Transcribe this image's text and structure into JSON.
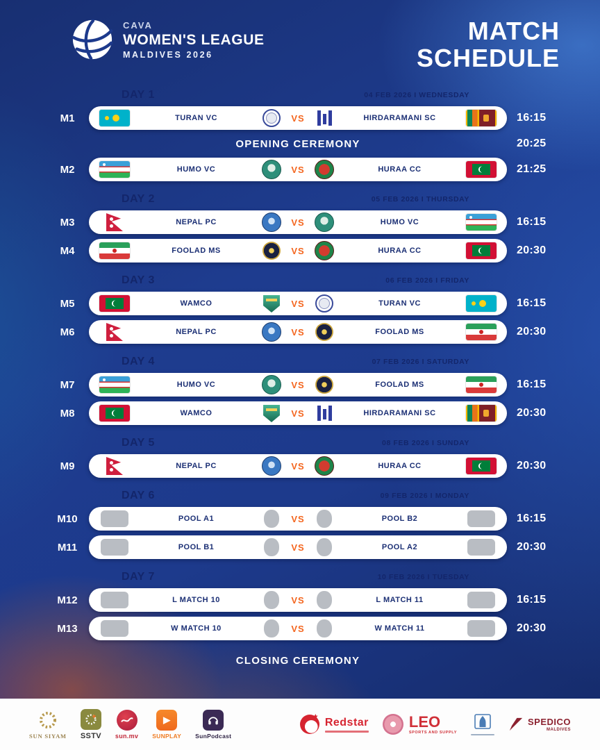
{
  "brand": {
    "cava": "CAVA",
    "league": "WOMEN'S LEAGUE",
    "edition": "MALDIVES 2026",
    "title_line1": "MATCH",
    "title_line2": "SCHEDULE"
  },
  "vs_label": "VS",
  "closing_ceremony": "CLOSING CEREMONY",
  "colors": {
    "background_blue": "#1d3a8c",
    "navy_text": "#13266b",
    "vs_orange": "#f4661f",
    "pill_white": "#ffffff",
    "placeholder_gray": "#b9bdc3"
  },
  "days": [
    {
      "label": "DAY 1",
      "date": "04 FEB 2026 I WEDNESDAY",
      "rows": [
        {
          "type": "match",
          "id": "M1",
          "time": "16:15",
          "home": {
            "name": "TURAN VC",
            "flag": "kz",
            "logo": "turan"
          },
          "away": {
            "name": "HIRDARAMANI SC",
            "flag": "lk",
            "logo": "hirdaramani"
          }
        },
        {
          "type": "ceremony",
          "label": "OPENING CEREMONY",
          "time": "20:25"
        },
        {
          "type": "match",
          "id": "M2",
          "time": "21:25",
          "home": {
            "name": "HUMO VC",
            "flag": "uz",
            "logo": "humo"
          },
          "away": {
            "name": "HURAA CC",
            "flag": "mv",
            "logo": "huraa"
          }
        }
      ]
    },
    {
      "label": "DAY 2",
      "date": "05 FEB 2026 I THURSDAY",
      "rows": [
        {
          "type": "match",
          "id": "M3",
          "time": "16:15",
          "home": {
            "name": "NEPAL PC",
            "flag": "np",
            "logo": "nepalpc"
          },
          "away": {
            "name": "HUMO VC",
            "flag": "uz",
            "logo": "humo"
          }
        },
        {
          "type": "match",
          "id": "M4",
          "time": "20:30",
          "home": {
            "name": "FOOLAD MS",
            "flag": "ir",
            "logo": "foolad"
          },
          "away": {
            "name": "HURAA CC",
            "flag": "mv",
            "logo": "huraa"
          }
        }
      ]
    },
    {
      "label": "DAY 3",
      "date": "06 FEB 2026 I FRIDAY",
      "rows": [
        {
          "type": "match",
          "id": "M5",
          "time": "16:15",
          "home": {
            "name": "WAMCO",
            "flag": "mv",
            "logo": "wamco"
          },
          "away": {
            "name": "TURAN VC",
            "flag": "kz",
            "logo": "turan"
          }
        },
        {
          "type": "match",
          "id": "M6",
          "time": "20:30",
          "home": {
            "name": "NEPAL PC",
            "flag": "np",
            "logo": "nepalpc"
          },
          "away": {
            "name": "FOOLAD MS",
            "flag": "ir",
            "logo": "foolad"
          }
        }
      ]
    },
    {
      "label": "DAY 4",
      "date": "07 FEB 2026 I SATURDAY",
      "rows": [
        {
          "type": "match",
          "id": "M7",
          "time": "16:15",
          "home": {
            "name": "HUMO VC",
            "flag": "uz",
            "logo": "humo"
          },
          "away": {
            "name": "FOOLAD MS",
            "flag": "ir",
            "logo": "foolad"
          }
        },
        {
          "type": "match",
          "id": "M8",
          "time": "20:30",
          "home": {
            "name": "WAMCO",
            "flag": "mv",
            "logo": "wamco"
          },
          "away": {
            "name": "HIRDARAMANI SC",
            "flag": "lk",
            "logo": "hirdaramani"
          }
        }
      ]
    },
    {
      "label": "DAY 5",
      "date": "08 FEB 2026 I SUNDAY",
      "rows": [
        {
          "type": "match",
          "id": "M9",
          "time": "20:30",
          "home": {
            "name": "NEPAL PC",
            "flag": "np",
            "logo": "nepalpc"
          },
          "away": {
            "name": "HURAA CC",
            "flag": "mv",
            "logo": "huraa"
          }
        }
      ]
    },
    {
      "label": "DAY 6",
      "date": "09 FEB 2026 I MONDAY",
      "rows": [
        {
          "type": "match",
          "id": "M10",
          "time": "16:15",
          "home": {
            "name": "POOL A1",
            "flag": "tbd",
            "logo": "tbd"
          },
          "away": {
            "name": "POOL B2",
            "flag": "tbd",
            "logo": "tbd"
          }
        },
        {
          "type": "match",
          "id": "M11",
          "time": "20:30",
          "home": {
            "name": "POOL B1",
            "flag": "tbd",
            "logo": "tbd"
          },
          "away": {
            "name": "POOL A2",
            "flag": "tbd",
            "logo": "tbd"
          }
        }
      ]
    },
    {
      "label": "DAY 7",
      "date": "10 FEB 2026 I TUESDAY",
      "rows": [
        {
          "type": "match",
          "id": "M12",
          "time": "16:15",
          "home": {
            "name": "L MATCH 10",
            "flag": "tbd",
            "logo": "tbd"
          },
          "away": {
            "name": "L MATCH 11",
            "flag": "tbd",
            "logo": "tbd"
          }
        },
        {
          "type": "match",
          "id": "M13",
          "time": "20:30",
          "home": {
            "name": "W MATCH 10",
            "flag": "tbd",
            "logo": "tbd"
          },
          "away": {
            "name": "W MATCH 11",
            "flag": "tbd",
            "logo": "tbd"
          }
        }
      ]
    }
  ],
  "footer": {
    "left_logos": [
      {
        "label": "SUN SIYAM"
      },
      {
        "label": "SSTV"
      },
      {
        "label": "sun.mv"
      },
      {
        "label": "SUNPLAY"
      },
      {
        "label": "SunPodcast"
      }
    ],
    "right_logos": [
      {
        "label": "Redstar"
      },
      {
        "label": "LEO",
        "sub": "SPORTS AND SUPPLY"
      },
      {
        "label": "SPEDICO",
        "sub": "MALDIVES"
      }
    ]
  }
}
